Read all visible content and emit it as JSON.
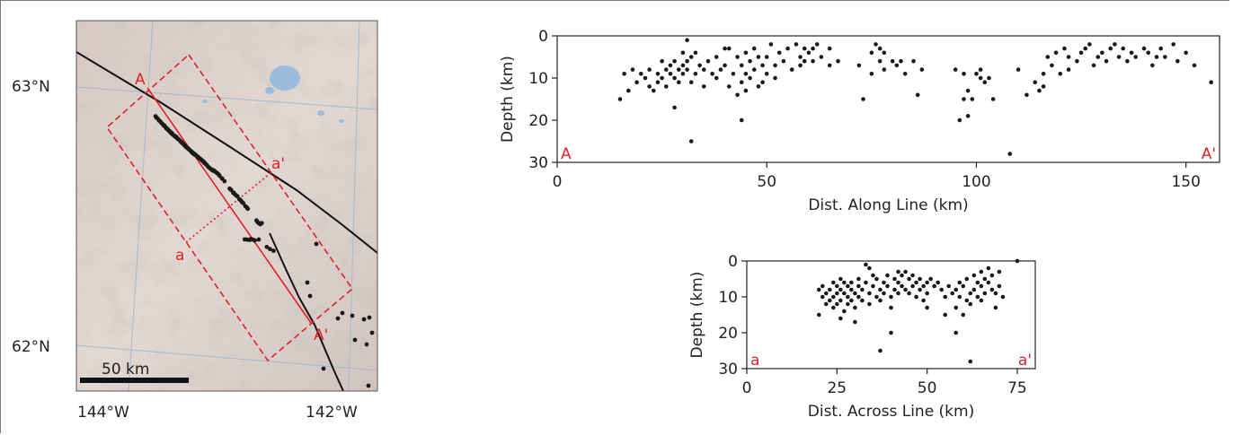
{
  "colors": {
    "events": "#1a1a1a",
    "profile": "#e32027",
    "fault": "#111111",
    "terrain": "#d8ccc8",
    "water": "#8fb8dc",
    "grid": "#aab8c4"
  },
  "map": {
    "lat_labels": [
      "63°N",
      "62°N"
    ],
    "lon_labels": [
      "144°W",
      "142°W"
    ],
    "scale_label": "50 km",
    "profile_labels": {
      "A": "A",
      "A_prime": "A'",
      "a": "a",
      "a_prime": "a'"
    },
    "icons": [
      "shaded-relief-terrain",
      "lake-shape",
      "fault-line",
      "profile-box"
    ]
  },
  "chart_data": [
    {
      "type": "scatter",
      "title": "",
      "xlabel": "Dist. Along Line (km)",
      "ylabel": "Depth (km)",
      "xlim": [
        0,
        158
      ],
      "ylim": [
        30,
        0
      ],
      "y_inverted": true,
      "xticks": [
        0,
        50,
        100,
        150
      ],
      "yticks": [
        0,
        10,
        20,
        30
      ],
      "grid": false,
      "corner_labels": {
        "left": "A",
        "right": "A'"
      },
      "x": [
        15,
        16,
        17,
        18,
        19,
        20,
        21,
        22,
        22,
        23,
        24,
        24,
        25,
        25,
        26,
        26,
        27,
        27,
        28,
        28,
        28,
        29,
        29,
        30,
        30,
        30,
        31,
        31,
        31,
        32,
        32,
        33,
        33,
        34,
        35,
        35,
        36,
        37,
        38,
        38,
        39,
        40,
        40,
        41,
        41,
        42,
        43,
        43,
        44,
        44,
        45,
        45,
        45,
        46,
        46,
        47,
        47,
        48,
        48,
        49,
        49,
        50,
        50,
        51,
        52,
        52,
        53,
        54,
        55,
        56,
        57,
        58,
        58,
        59,
        59,
        60,
        61,
        61,
        62,
        63,
        65,
        65,
        67,
        72,
        73,
        75,
        75,
        76,
        77,
        77,
        78,
        78,
        80,
        81,
        82,
        83,
        85,
        86,
        87,
        95,
        96,
        97,
        97,
        98,
        98,
        99,
        100,
        101,
        101,
        102,
        103,
        104,
        110,
        112,
        114,
        115,
        116,
        116,
        117,
        118,
        119,
        120,
        121,
        122,
        122,
        124,
        125,
        126,
        127,
        128,
        129,
        130,
        131,
        132,
        133,
        134,
        135,
        136,
        137,
        138,
        140,
        141,
        142,
        143,
        144,
        145,
        147,
        148,
        150,
        152,
        156,
        32,
        44,
        108
      ],
      "y": [
        15,
        9,
        13,
        8,
        11,
        9,
        10,
        12,
        8,
        13,
        9,
        11,
        6,
        10,
        8,
        12,
        7,
        9,
        6,
        10,
        17,
        8,
        11,
        4,
        7,
        9,
        1,
        6,
        8,
        5,
        11,
        9,
        4,
        7,
        8,
        12,
        6,
        9,
        5,
        10,
        8,
        3,
        7,
        3,
        12,
        9,
        5,
        14,
        7,
        11,
        4,
        9,
        13,
        6,
        10,
        3,
        8,
        5,
        12,
        7,
        11,
        5,
        9,
        2,
        7,
        10,
        4,
        6,
        3,
        8,
        2,
        5,
        7,
        3,
        6,
        4,
        3,
        6,
        2,
        5,
        3,
        7,
        6,
        7,
        15,
        4,
        9,
        2,
        3,
        6,
        8,
        4,
        6,
        7,
        6,
        9,
        6,
        14,
        8,
        8,
        20,
        9,
        15,
        13,
        19,
        15,
        9,
        10,
        8,
        11,
        10,
        15,
        8,
        14,
        11,
        13,
        9,
        12,
        5,
        7,
        4,
        9,
        3,
        5,
        8,
        6,
        4,
        3,
        2,
        7,
        5,
        4,
        6,
        3,
        2,
        5,
        3,
        6,
        4,
        5,
        3,
        4,
        7,
        5,
        3,
        5,
        2,
        6,
        4,
        7,
        11,
        25,
        20,
        28
      ]
    },
    {
      "type": "scatter",
      "title": "",
      "xlabel": "Dist. Across Line (km)",
      "ylabel": "Depth (km)",
      "xlim": [
        0,
        80
      ],
      "ylim": [
        30,
        0
      ],
      "y_inverted": true,
      "xticks": [
        0,
        25,
        50,
        75
      ],
      "yticks": [
        0,
        10,
        20,
        30
      ],
      "grid": false,
      "corner_labels": {
        "left": "a",
        "right": "a'"
      },
      "x": [
        20,
        20,
        21,
        21,
        22,
        22,
        23,
        23,
        24,
        24,
        24,
        25,
        25,
        25,
        26,
        26,
        26,
        27,
        27,
        27,
        28,
        28,
        28,
        29,
        29,
        29,
        30,
        30,
        31,
        31,
        31,
        32,
        32,
        33,
        33,
        34,
        34,
        35,
        35,
        36,
        36,
        37,
        37,
        38,
        38,
        39,
        39,
        40,
        40,
        41,
        41,
        42,
        42,
        43,
        43,
        44,
        44,
        45,
        45,
        46,
        46,
        47,
        47,
        48,
        48,
        49,
        49,
        50,
        50,
        51,
        52,
        53,
        54,
        55,
        56,
        57,
        58,
        58,
        59,
        59,
        60,
        60,
        61,
        61,
        62,
        62,
        63,
        63,
        64,
        64,
        65,
        65,
        65,
        66,
        66,
        67,
        67,
        68,
        68,
        69,
        69,
        70,
        70,
        71,
        75,
        26,
        30,
        34,
        37,
        40,
        42,
        50,
        55,
        58,
        62
      ],
      "y": [
        8,
        15,
        10,
        7,
        12,
        9,
        8,
        11,
        6,
        10,
        13,
        7,
        9,
        12,
        5,
        8,
        11,
        6,
        9,
        14,
        7,
        10,
        12,
        8,
        11,
        6,
        9,
        13,
        5,
        7,
        10,
        8,
        11,
        1,
        6,
        9,
        12,
        4,
        7,
        10,
        5,
        8,
        11,
        6,
        9,
        4,
        7,
        10,
        13,
        5,
        8,
        6,
        9,
        4,
        7,
        3,
        8,
        5,
        9,
        4,
        7,
        6,
        10,
        5,
        8,
        7,
        11,
        6,
        9,
        5,
        7,
        6,
        8,
        10,
        7,
        9,
        8,
        13,
        6,
        10,
        15,
        7,
        11,
        5,
        9,
        12,
        4,
        8,
        6,
        10,
        3,
        7,
        11,
        5,
        9,
        2,
        6,
        4,
        8,
        9,
        13,
        3,
        7,
        10,
        0,
        16,
        17,
        2,
        25,
        20,
        3,
        13,
        15,
        20,
        28
      ]
    }
  ]
}
